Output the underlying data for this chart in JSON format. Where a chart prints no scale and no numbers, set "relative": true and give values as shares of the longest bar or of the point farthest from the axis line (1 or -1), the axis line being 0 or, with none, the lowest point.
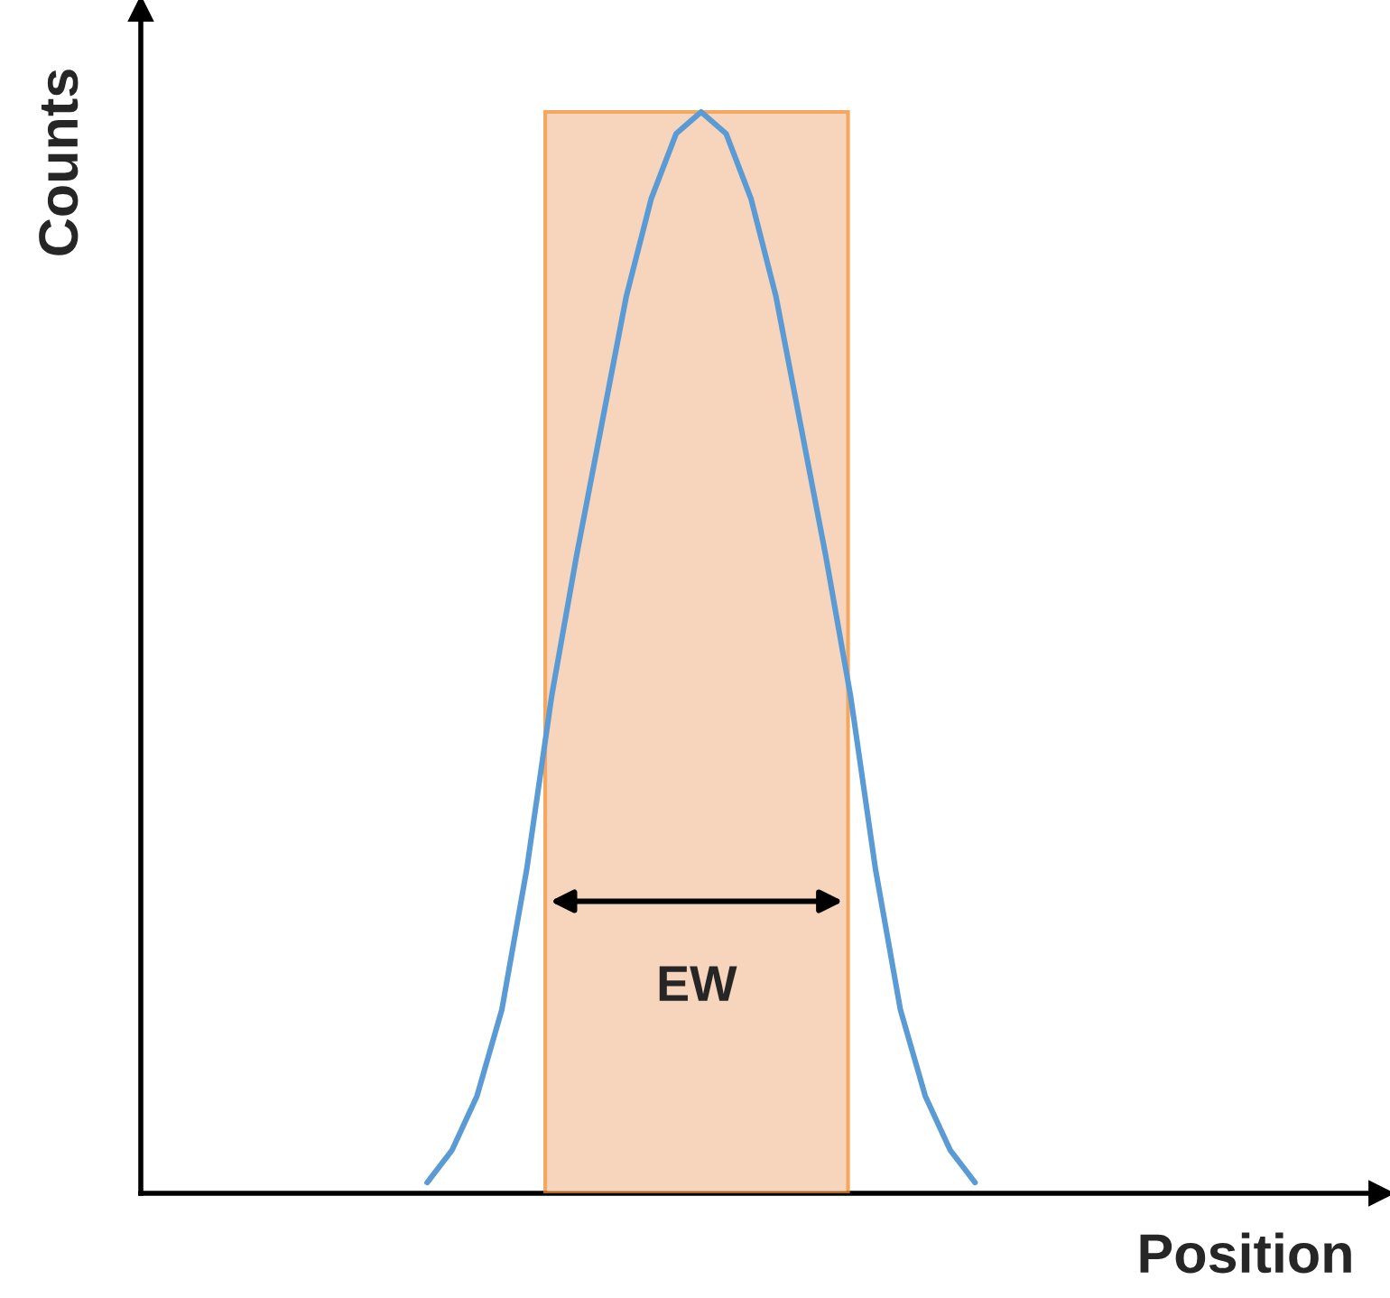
{
  "chart_data": {
    "type": "line",
    "relative": true,
    "xlabel": "Position",
    "ylabel": "Counts",
    "categories": [
      null,
      null,
      null,
      null,
      null,
      null,
      null,
      null,
      null,
      null,
      null,
      null,
      null,
      null,
      null,
      null,
      null,
      null,
      null,
      null,
      null,
      null,
      null,
      null,
      null,
      null,
      null,
      null,
      null,
      null,
      null,
      null,
      null,
      null,
      null,
      null,
      null
    ],
    "series": [
      {
        "color": "#5b9bd5",
        "values": [
          null,
          null,
          null,
          null,
          null,
          null,
          null,
          0.01,
          0.04,
          0.09,
          0.17,
          0.3,
          0.46,
          0.59,
          0.71,
          0.83,
          0.92,
          0.98,
          1,
          0.98,
          0.92,
          0.83,
          0.71,
          0.59,
          0.46,
          0.3,
          0.17,
          0.09,
          0.04,
          0.01,
          null,
          null,
          null,
          null,
          null,
          null,
          null
        ]
      }
    ],
    "annotations": [
      "EW"
    ]
  }
}
